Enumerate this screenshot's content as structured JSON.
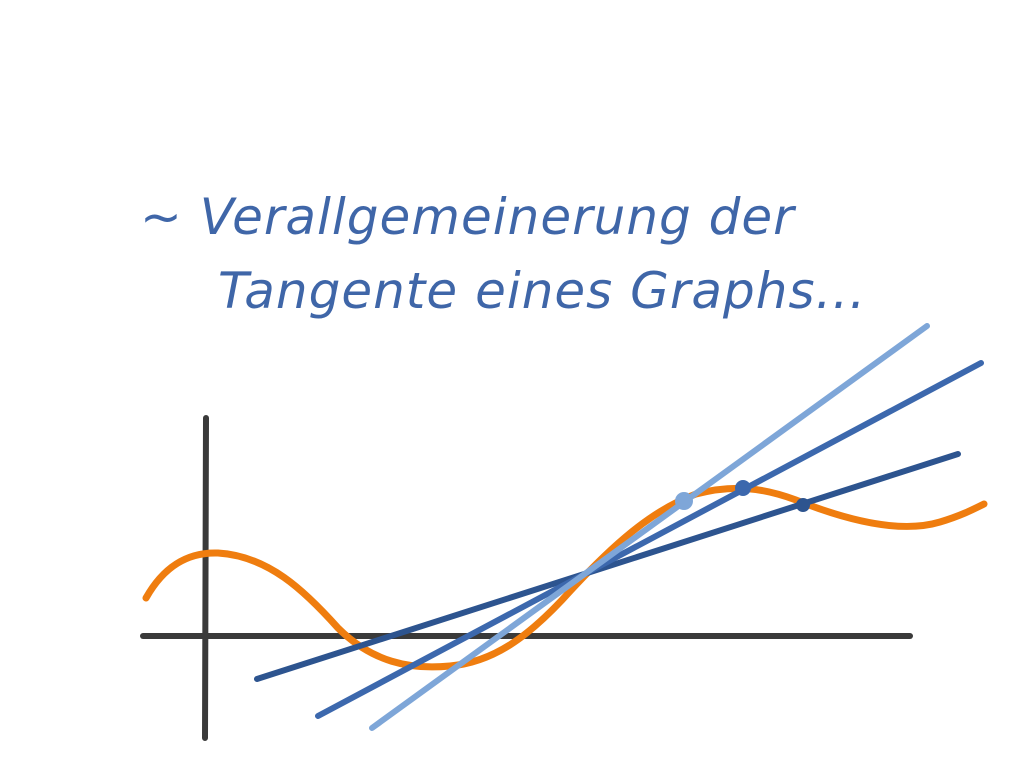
{
  "notes": {
    "line1": "~ Verallgemeinerung der",
    "line2": "Tangente eines Graphs..."
  },
  "colors": {
    "ink": "#3f66a8",
    "axis": "#3a3a3a",
    "curve": "#ef7d0f",
    "secant_light": "#7ea6d8",
    "secant_mid": "#3c68ad",
    "secant_dark": "#2d548f",
    "background": "#ffffff"
  }
}
